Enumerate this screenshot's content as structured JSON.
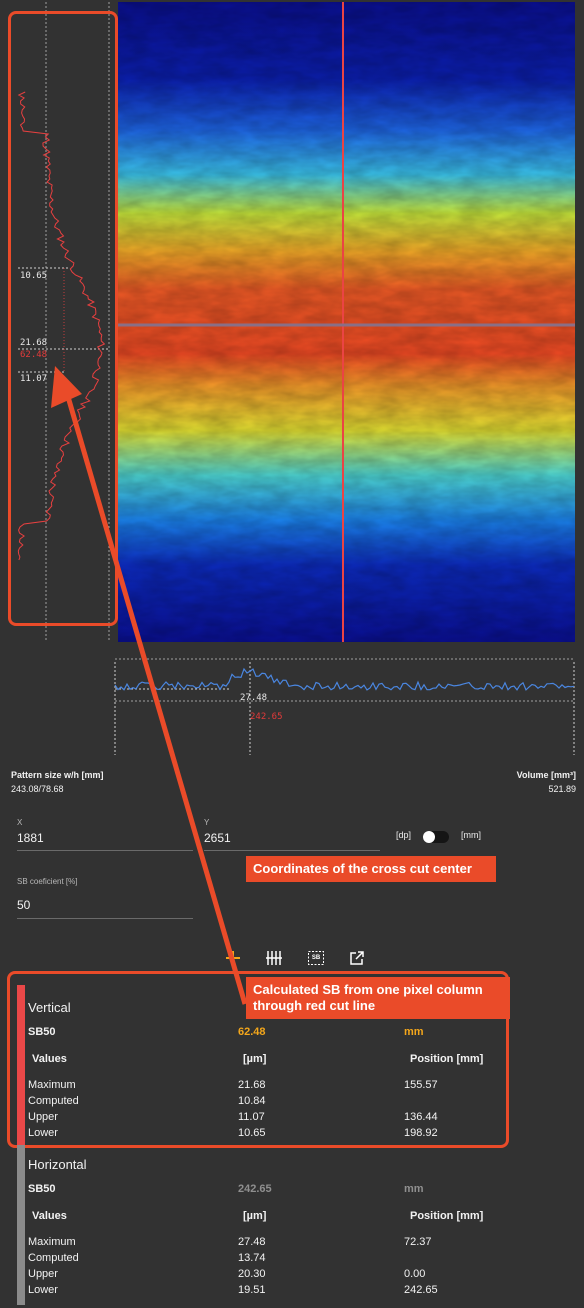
{
  "colors": {
    "accent_orange": "#f3a61b",
    "callout": "#ea4b29",
    "vertical_bar": "#ea4848",
    "horizontal_bar": "#8b8b8b",
    "profile_red": "#e84040",
    "profile_blue": "#4a86e0"
  },
  "vertical_profile": {
    "markers": {
      "upper_lower_a": "10.65",
      "maximum": "21.68",
      "sb": "62.48",
      "upper_lower_b": "11.07"
    }
  },
  "horizontal_profile": {
    "markers": {
      "maximum": "27.48",
      "sb": "242.65"
    }
  },
  "meta": {
    "pattern_size_label": "Pattern size w/h [mm]",
    "pattern_size_value": "243.08/78.68",
    "volume_label": "Volume [mm³]",
    "volume_value": "521.89"
  },
  "inputs": {
    "x_label": "X",
    "x_value": "1881",
    "y_label": "Y",
    "y_value": "2651",
    "unit_dp": "[dp]",
    "unit_mm": "[mm]",
    "sb_coef_label": "SB coeficient [%]",
    "sb_coef_value": "50"
  },
  "toolbar": {
    "icons": [
      "plus-icon",
      "vertical-lines-icon",
      "sb-icon",
      "external-link-icon"
    ],
    "sb_glyph": "SB"
  },
  "callouts": {
    "cross_cut": "Coordinates of the cross cut center",
    "sb_note": "Calculated SB from one pixel column through red cut line"
  },
  "vertical": {
    "title": "Vertical",
    "sb_label": "SB50",
    "sb_value": "62.48",
    "sb_unit": "mm",
    "headers": [
      "Values",
      "[µm]",
      "Position [mm]"
    ],
    "rows": [
      {
        "name": "Maximum",
        "um": "21.68",
        "pos": "155.57"
      },
      {
        "name": "Computed",
        "um": "10.84",
        "pos": ""
      },
      {
        "name": "Upper",
        "um": "11.07",
        "pos": "136.44"
      },
      {
        "name": "Lower",
        "um": "10.65",
        "pos": "198.92"
      }
    ]
  },
  "horizontal": {
    "title": "Horizontal",
    "sb_label": "SB50",
    "sb_value": "242.65",
    "sb_unit": "mm",
    "headers": [
      "Values",
      "[µm]",
      "Position [mm]"
    ],
    "rows": [
      {
        "name": "Maximum",
        "um": "27.48",
        "pos": "72.37"
      },
      {
        "name": "Computed",
        "um": "13.74",
        "pos": ""
      },
      {
        "name": "Upper",
        "um": "20.30",
        "pos": "0.00"
      },
      {
        "name": "Lower",
        "um": "19.51",
        "pos": "242.65"
      }
    ]
  }
}
